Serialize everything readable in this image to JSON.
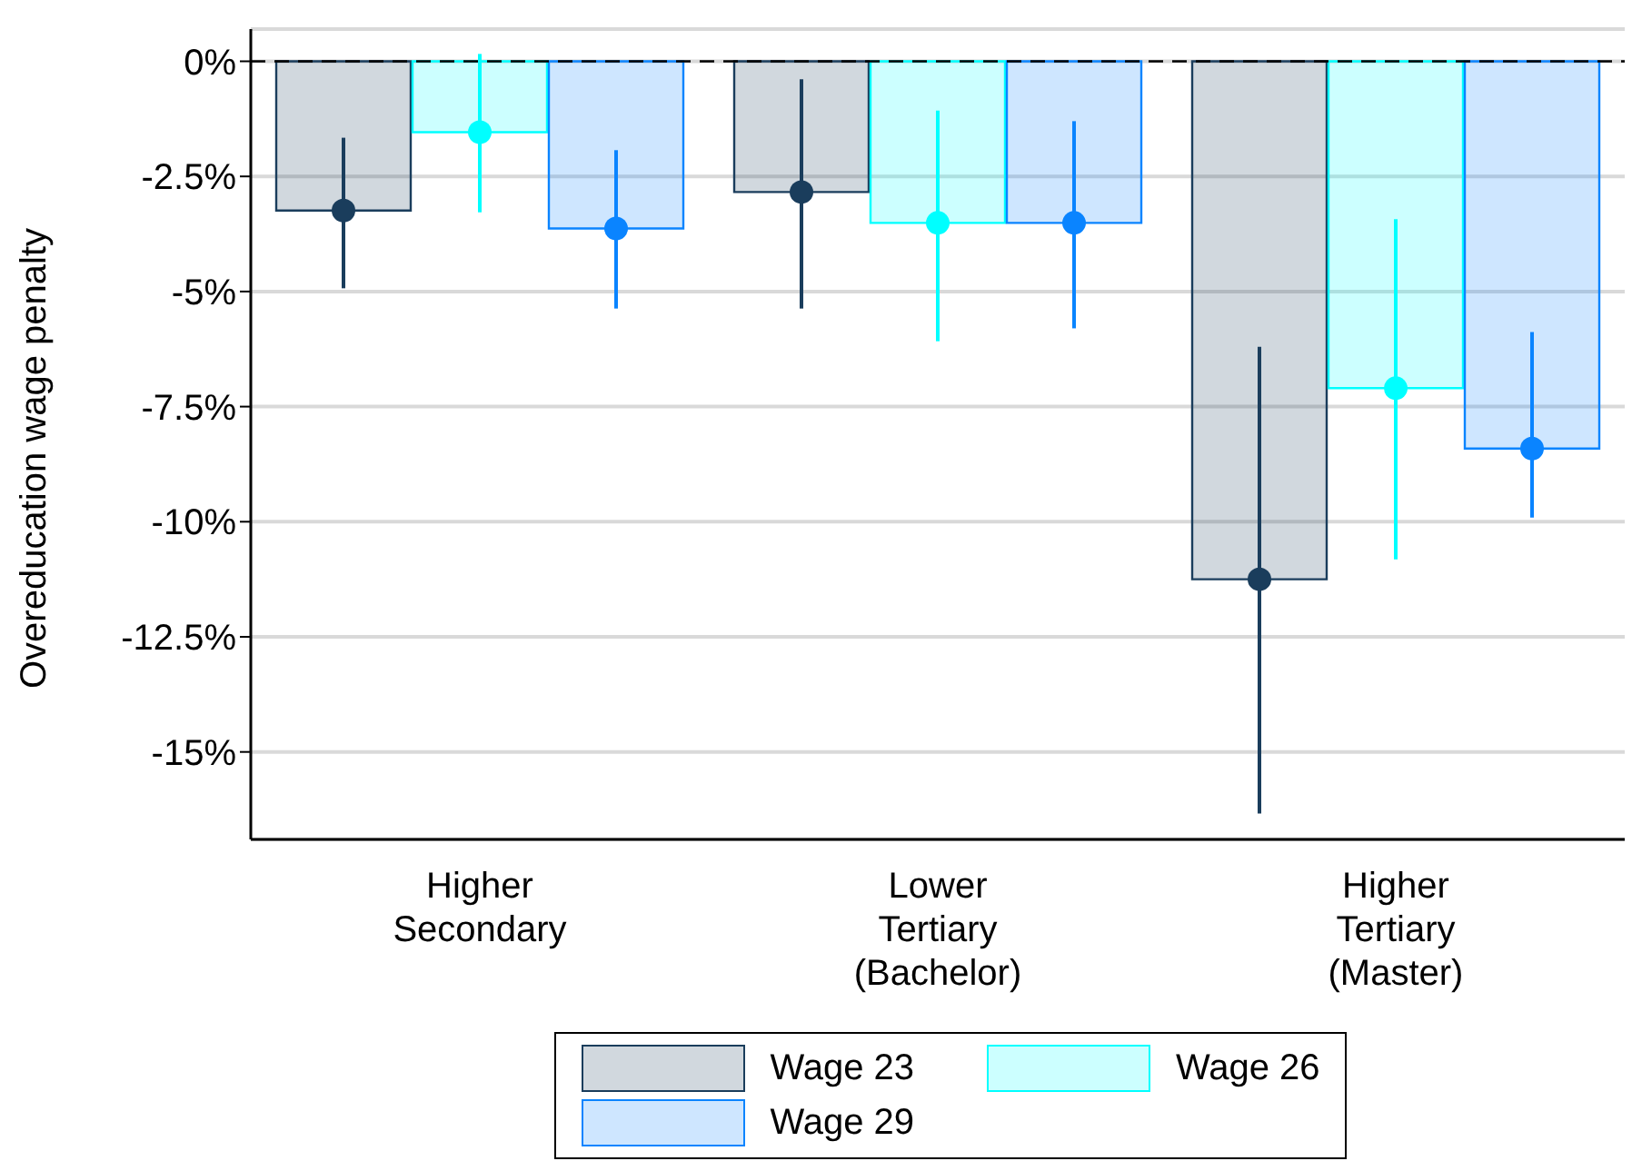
{
  "chart_data": {
    "type": "bar",
    "ylabel": "Overeducation wage penalty",
    "categories": [
      "Higher Secondary",
      "Lower Tertiary (Bachelor)",
      "Higher Tertiary (Master)"
    ],
    "series": [
      {
        "name": "Wage 23",
        "color": "#1a3d5c",
        "values": [
          -3.24,
          -2.84,
          -11.25
        ],
        "errors": [
          [
            -4.93,
            -1.66
          ],
          [
            -5.37,
            -0.39
          ],
          [
            -16.34,
            -6.2
          ]
        ]
      },
      {
        "name": "Wage 26",
        "color": "#00ffff",
        "values": [
          -1.54,
          -3.51,
          -7.1
        ],
        "errors": [
          [
            -3.28,
            0.16
          ],
          [
            -6.08,
            -1.07
          ],
          [
            -10.82,
            -3.43
          ]
        ]
      },
      {
        "name": "Wage 29",
        "color": "#0a84ff",
        "values": [
          -3.63,
          -3.51,
          -8.41
        ],
        "errors": [
          [
            -5.37,
            -1.93
          ],
          [
            -5.8,
            -1.3
          ],
          [
            -9.91,
            -5.88
          ]
        ]
      },
      {
        "type": "scatter",
        "color": "#1a3d5c",
        "values": [
          -3.24,
          -2.84,
          -11.25
        ]
      },
      {
        "type": "scatter",
        "color": "#00ffff",
        "values": [
          -1.54,
          -3.51,
          -7.1
        ]
      },
      {
        "type": "scatter",
        "color": "#0a84ff",
        "values": [
          -3.63,
          -3.51,
          -8.41
        ]
      }
    ],
    "ylim": [
      -16.9,
      0.7
    ],
    "yticks": [
      {
        "value": 0,
        "label": "0%"
      },
      {
        "value": -2.5,
        "label": "-2.5%"
      },
      {
        "value": -5,
        "label": "-5%"
      },
      {
        "value": -7.5,
        "label": "-7.5%"
      },
      {
        "value": -10,
        "label": "-10%"
      },
      {
        "value": -12.5,
        "label": "-12.5%"
      },
      {
        "value": -15,
        "label": "-15%"
      }
    ],
    "ref_lines": [
      {
        "axis": "y",
        "value": 0,
        "color": "#000000",
        "line_style": "dashed"
      }
    ],
    "grid": "y",
    "legend": "bottom",
    "marker": "circle"
  }
}
